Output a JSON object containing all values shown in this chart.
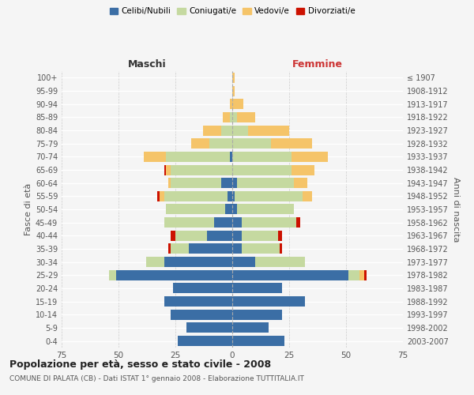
{
  "age_groups": [
    "100+",
    "95-99",
    "90-94",
    "85-89",
    "80-84",
    "75-79",
    "70-74",
    "65-69",
    "60-64",
    "55-59",
    "50-54",
    "45-49",
    "40-44",
    "35-39",
    "30-34",
    "25-29",
    "20-24",
    "15-19",
    "10-14",
    "5-9",
    "0-4"
  ],
  "birth_years": [
    "≤ 1907",
    "1908-1912",
    "1913-1917",
    "1918-1922",
    "1923-1927",
    "1928-1932",
    "1933-1937",
    "1938-1942",
    "1943-1947",
    "1948-1952",
    "1953-1957",
    "1958-1962",
    "1963-1967",
    "1968-1972",
    "1973-1977",
    "1978-1982",
    "1983-1987",
    "1988-1992",
    "1993-1997",
    "1998-2002",
    "2003-2007"
  ],
  "males": {
    "celibi": [
      0,
      0,
      0,
      0,
      0,
      0,
      1,
      0,
      5,
      2,
      3,
      8,
      11,
      19,
      30,
      51,
      26,
      30,
      27,
      20,
      24
    ],
    "coniugati": [
      0,
      0,
      0,
      1,
      5,
      10,
      28,
      27,
      22,
      28,
      26,
      22,
      14,
      8,
      8,
      3,
      0,
      0,
      0,
      0,
      0
    ],
    "vedovi": [
      0,
      0,
      1,
      3,
      8,
      8,
      10,
      2,
      1,
      2,
      0,
      0,
      0,
      0,
      0,
      0,
      0,
      0,
      0,
      0,
      0
    ],
    "divorziati": [
      0,
      0,
      0,
      0,
      0,
      0,
      0,
      1,
      0,
      1,
      0,
      0,
      2,
      1,
      0,
      0,
      0,
      0,
      0,
      0,
      0
    ]
  },
  "females": {
    "nubili": [
      0,
      0,
      0,
      0,
      0,
      0,
      0,
      0,
      2,
      1,
      2,
      4,
      4,
      4,
      10,
      51,
      22,
      32,
      22,
      16,
      23
    ],
    "coniugate": [
      0,
      0,
      0,
      2,
      7,
      17,
      26,
      26,
      25,
      30,
      25,
      24,
      16,
      17,
      22,
      5,
      0,
      0,
      0,
      0,
      0
    ],
    "vedove": [
      1,
      1,
      5,
      8,
      18,
      18,
      16,
      10,
      6,
      4,
      0,
      0,
      0,
      0,
      0,
      2,
      0,
      0,
      0,
      0,
      0
    ],
    "divorziate": [
      0,
      0,
      0,
      0,
      0,
      0,
      0,
      0,
      0,
      0,
      0,
      2,
      2,
      1,
      0,
      1,
      0,
      0,
      0,
      0,
      0
    ]
  },
  "colors": {
    "celibi": "#3b6ea5",
    "coniugati": "#c5d9a0",
    "vedovi": "#f5c469",
    "divorziati": "#cc1100"
  },
  "xlim": 75,
  "title_main": "Popolazione per età, sesso e stato civile - 2008",
  "title_sub": "COMUNE DI PALATA (CB) - Dati ISTAT 1° gennaio 2008 - Elaborazione TUTTITALIA.IT",
  "xlabel_left": "Maschi",
  "xlabel_right": "Femmine",
  "ylabel_left": "Fasce di età",
  "ylabel_right": "Anni di nascita",
  "legend_labels": [
    "Celibi/Nubili",
    "Coniugati/e",
    "Vedovi/e",
    "Divorziati/e"
  ],
  "bg_color": "#f5f5f5",
  "plot_bg": "#f5f5f5"
}
